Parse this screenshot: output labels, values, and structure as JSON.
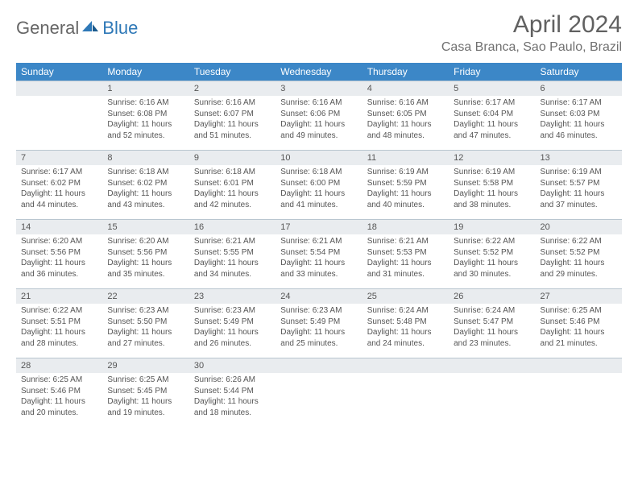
{
  "logo": {
    "text1": "General",
    "text2": "Blue"
  },
  "title": "April 2024",
  "location": "Casa Branca, Sao Paulo, Brazil",
  "colors": {
    "header_bg": "#3c87c7",
    "header_text": "#ffffff",
    "daynum_bg": "#e9ecef",
    "border": "#b9c6d0",
    "body_text": "#555555",
    "logo_gray": "#666666",
    "logo_blue": "#2e78b7"
  },
  "weekdays": [
    "Sunday",
    "Monday",
    "Tuesday",
    "Wednesday",
    "Thursday",
    "Friday",
    "Saturday"
  ],
  "weeks": [
    [
      {
        "n": "",
        "sunrise": "",
        "sunset": "",
        "daylight": ""
      },
      {
        "n": "1",
        "sunrise": "Sunrise: 6:16 AM",
        "sunset": "Sunset: 6:08 PM",
        "daylight": "Daylight: 11 hours and 52 minutes."
      },
      {
        "n": "2",
        "sunrise": "Sunrise: 6:16 AM",
        "sunset": "Sunset: 6:07 PM",
        "daylight": "Daylight: 11 hours and 51 minutes."
      },
      {
        "n": "3",
        "sunrise": "Sunrise: 6:16 AM",
        "sunset": "Sunset: 6:06 PM",
        "daylight": "Daylight: 11 hours and 49 minutes."
      },
      {
        "n": "4",
        "sunrise": "Sunrise: 6:16 AM",
        "sunset": "Sunset: 6:05 PM",
        "daylight": "Daylight: 11 hours and 48 minutes."
      },
      {
        "n": "5",
        "sunrise": "Sunrise: 6:17 AM",
        "sunset": "Sunset: 6:04 PM",
        "daylight": "Daylight: 11 hours and 47 minutes."
      },
      {
        "n": "6",
        "sunrise": "Sunrise: 6:17 AM",
        "sunset": "Sunset: 6:03 PM",
        "daylight": "Daylight: 11 hours and 46 minutes."
      }
    ],
    [
      {
        "n": "7",
        "sunrise": "Sunrise: 6:17 AM",
        "sunset": "Sunset: 6:02 PM",
        "daylight": "Daylight: 11 hours and 44 minutes."
      },
      {
        "n": "8",
        "sunrise": "Sunrise: 6:18 AM",
        "sunset": "Sunset: 6:02 PM",
        "daylight": "Daylight: 11 hours and 43 minutes."
      },
      {
        "n": "9",
        "sunrise": "Sunrise: 6:18 AM",
        "sunset": "Sunset: 6:01 PM",
        "daylight": "Daylight: 11 hours and 42 minutes."
      },
      {
        "n": "10",
        "sunrise": "Sunrise: 6:18 AM",
        "sunset": "Sunset: 6:00 PM",
        "daylight": "Daylight: 11 hours and 41 minutes."
      },
      {
        "n": "11",
        "sunrise": "Sunrise: 6:19 AM",
        "sunset": "Sunset: 5:59 PM",
        "daylight": "Daylight: 11 hours and 40 minutes."
      },
      {
        "n": "12",
        "sunrise": "Sunrise: 6:19 AM",
        "sunset": "Sunset: 5:58 PM",
        "daylight": "Daylight: 11 hours and 38 minutes."
      },
      {
        "n": "13",
        "sunrise": "Sunrise: 6:19 AM",
        "sunset": "Sunset: 5:57 PM",
        "daylight": "Daylight: 11 hours and 37 minutes."
      }
    ],
    [
      {
        "n": "14",
        "sunrise": "Sunrise: 6:20 AM",
        "sunset": "Sunset: 5:56 PM",
        "daylight": "Daylight: 11 hours and 36 minutes."
      },
      {
        "n": "15",
        "sunrise": "Sunrise: 6:20 AM",
        "sunset": "Sunset: 5:56 PM",
        "daylight": "Daylight: 11 hours and 35 minutes."
      },
      {
        "n": "16",
        "sunrise": "Sunrise: 6:21 AM",
        "sunset": "Sunset: 5:55 PM",
        "daylight": "Daylight: 11 hours and 34 minutes."
      },
      {
        "n": "17",
        "sunrise": "Sunrise: 6:21 AM",
        "sunset": "Sunset: 5:54 PM",
        "daylight": "Daylight: 11 hours and 33 minutes."
      },
      {
        "n": "18",
        "sunrise": "Sunrise: 6:21 AM",
        "sunset": "Sunset: 5:53 PM",
        "daylight": "Daylight: 11 hours and 31 minutes."
      },
      {
        "n": "19",
        "sunrise": "Sunrise: 6:22 AM",
        "sunset": "Sunset: 5:52 PM",
        "daylight": "Daylight: 11 hours and 30 minutes."
      },
      {
        "n": "20",
        "sunrise": "Sunrise: 6:22 AM",
        "sunset": "Sunset: 5:52 PM",
        "daylight": "Daylight: 11 hours and 29 minutes."
      }
    ],
    [
      {
        "n": "21",
        "sunrise": "Sunrise: 6:22 AM",
        "sunset": "Sunset: 5:51 PM",
        "daylight": "Daylight: 11 hours and 28 minutes."
      },
      {
        "n": "22",
        "sunrise": "Sunrise: 6:23 AM",
        "sunset": "Sunset: 5:50 PM",
        "daylight": "Daylight: 11 hours and 27 minutes."
      },
      {
        "n": "23",
        "sunrise": "Sunrise: 6:23 AM",
        "sunset": "Sunset: 5:49 PM",
        "daylight": "Daylight: 11 hours and 26 minutes."
      },
      {
        "n": "24",
        "sunrise": "Sunrise: 6:23 AM",
        "sunset": "Sunset: 5:49 PM",
        "daylight": "Daylight: 11 hours and 25 minutes."
      },
      {
        "n": "25",
        "sunrise": "Sunrise: 6:24 AM",
        "sunset": "Sunset: 5:48 PM",
        "daylight": "Daylight: 11 hours and 24 minutes."
      },
      {
        "n": "26",
        "sunrise": "Sunrise: 6:24 AM",
        "sunset": "Sunset: 5:47 PM",
        "daylight": "Daylight: 11 hours and 23 minutes."
      },
      {
        "n": "27",
        "sunrise": "Sunrise: 6:25 AM",
        "sunset": "Sunset: 5:46 PM",
        "daylight": "Daylight: 11 hours and 21 minutes."
      }
    ],
    [
      {
        "n": "28",
        "sunrise": "Sunrise: 6:25 AM",
        "sunset": "Sunset: 5:46 PM",
        "daylight": "Daylight: 11 hours and 20 minutes."
      },
      {
        "n": "29",
        "sunrise": "Sunrise: 6:25 AM",
        "sunset": "Sunset: 5:45 PM",
        "daylight": "Daylight: 11 hours and 19 minutes."
      },
      {
        "n": "30",
        "sunrise": "Sunrise: 6:26 AM",
        "sunset": "Sunset: 5:44 PM",
        "daylight": "Daylight: 11 hours and 18 minutes."
      },
      {
        "n": "",
        "sunrise": "",
        "sunset": "",
        "daylight": ""
      },
      {
        "n": "",
        "sunrise": "",
        "sunset": "",
        "daylight": ""
      },
      {
        "n": "",
        "sunrise": "",
        "sunset": "",
        "daylight": ""
      },
      {
        "n": "",
        "sunrise": "",
        "sunset": "",
        "daylight": ""
      }
    ]
  ]
}
